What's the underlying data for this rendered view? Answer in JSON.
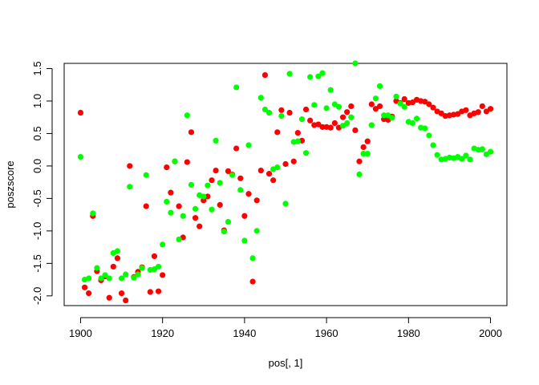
{
  "chart_data": {
    "type": "scatter",
    "xlabel": "pos[, 1]",
    "ylabel": "poszscore",
    "xlim": [
      1896,
      2004
    ],
    "ylim": [
      -2.15,
      1.58
    ],
    "x_ticks": [
      1900,
      1920,
      1940,
      1960,
      1980,
      2000
    ],
    "y_ticks": [
      -2.0,
      -1.5,
      -1.0,
      -0.5,
      0.0,
      0.5,
      1.0,
      1.5
    ],
    "x_tick_labels": [
      "1900",
      "1920",
      "1940",
      "1960",
      "1980",
      "2000"
    ],
    "y_tick_labels": [
      "-2.0",
      "-1.5",
      "-1.0",
      "-0.5",
      "0.0",
      "0.5",
      "1.0",
      "1.5"
    ],
    "grid": false,
    "legend": "none",
    "series": [
      {
        "color": "#ff0000",
        "x": [
          1900,
          1901,
          1902,
          1903,
          1904,
          1905,
          1906,
          1907,
          1908,
          1909,
          1910,
          1911,
          1912,
          1913,
          1914,
          1915,
          1916,
          1917,
          1918,
          1919,
          1920,
          1921,
          1922,
          1923,
          1924,
          1925,
          1926,
          1927,
          1928,
          1929,
          1930,
          1931,
          1932,
          1933,
          1934,
          1935,
          1936,
          1937,
          1938,
          1939,
          1940,
          1941,
          1942,
          1943,
          1944,
          1945,
          1946,
          1947,
          1948,
          1949,
          1950,
          1951,
          1952,
          1953,
          1954,
          1955,
          1956,
          1957,
          1958,
          1959,
          1960,
          1961,
          1962,
          1963,
          1964,
          1965,
          1966,
          1967,
          1968,
          1969,
          1970,
          1971,
          1972,
          1973,
          1974,
          1975,
          1976,
          1977,
          1978,
          1979,
          1980,
          1981,
          1982,
          1983,
          1984,
          1985,
          1986,
          1987,
          1988,
          1989,
          1990,
          1991,
          1992,
          1993,
          1994,
          1995,
          1996,
          1997,
          1998,
          1999,
          2000
        ],
        "y": [
          0.82,
          -1.87,
          -1.96,
          -0.77,
          -1.62,
          -1.76,
          -1.7,
          -2.03,
          -1.55,
          -1.42,
          -1.96,
          -2.07,
          0.0,
          -1.71,
          -1.63,
          -1.56,
          -0.62,
          -1.94,
          -1.39,
          -1.93,
          -1.68,
          -0.02,
          -0.41,
          0.07,
          -0.62,
          -1.1,
          0.06,
          0.52,
          -0.8,
          -0.93,
          -0.53,
          -0.47,
          -0.22,
          -0.07,
          -0.6,
          -0.99,
          -0.08,
          -0.13,
          0.27,
          -0.19,
          -0.77,
          -0.43,
          -1.78,
          -0.53,
          -0.07,
          1.4,
          -0.12,
          -0.22,
          0.52,
          0.86,
          0.03,
          0.82,
          0.07,
          0.51,
          0.39,
          0.87,
          0.7,
          0.63,
          0.64,
          0.6,
          0.6,
          0.59,
          0.66,
          0.59,
          0.75,
          0.83,
          0.92,
          0.55,
          0.07,
          0.29,
          0.38,
          0.95,
          0.88,
          0.92,
          0.72,
          0.71,
          0.76,
          1.0,
          0.97,
          1.03,
          0.97,
          0.98,
          1.02,
          1.0,
          0.99,
          0.95,
          0.9,
          0.84,
          0.81,
          0.77,
          0.78,
          0.79,
          0.8,
          0.84,
          0.86,
          0.78,
          0.81,
          0.83,
          0.92,
          0.84,
          0.88
        ]
      },
      {
        "color": "#00ff00",
        "x": [
          1900,
          1901,
          1902,
          1903,
          1904,
          1905,
          1906,
          1907,
          1908,
          1909,
          1910,
          1911,
          1912,
          1913,
          1914,
          1915,
          1916,
          1917,
          1918,
          1919,
          1920,
          1921,
          1922,
          1923,
          1924,
          1925,
          1926,
          1927,
          1928,
          1929,
          1930,
          1931,
          1932,
          1933,
          1934,
          1935,
          1936,
          1937,
          1938,
          1939,
          1940,
          1941,
          1942,
          1943,
          1944,
          1945,
          1946,
          1947,
          1948,
          1949,
          1950,
          1951,
          1952,
          1953,
          1954,
          1955,
          1956,
          1957,
          1958,
          1959,
          1960,
          1961,
          1962,
          1963,
          1964,
          1965,
          1966,
          1967,
          1968,
          1969,
          1970,
          1971,
          1972,
          1973,
          1974,
          1975,
          1976,
          1977,
          1978,
          1979,
          1980,
          1981,
          1982,
          1983,
          1984,
          1985,
          1986,
          1987,
          1988,
          1989,
          1990,
          1991,
          1992,
          1993,
          1994,
          1995,
          1996,
          1997,
          1998,
          1999,
          2000
        ],
        "y": [
          0.14,
          -1.75,
          -1.73,
          -0.73,
          -1.57,
          -1.73,
          -1.68,
          -1.73,
          -1.34,
          -1.31,
          -1.73,
          -1.67,
          -0.32,
          -1.72,
          -1.67,
          -1.57,
          -0.14,
          -1.6,
          -1.59,
          -1.55,
          -1.21,
          -0.55,
          -0.72,
          0.07,
          -1.13,
          -0.77,
          0.78,
          -0.29,
          -0.66,
          -0.45,
          -0.47,
          -0.3,
          -0.67,
          0.39,
          -0.26,
          -1.01,
          -0.86,
          -0.14,
          1.21,
          -0.37,
          -1.15,
          0.32,
          -1.42,
          -1.0,
          1.05,
          0.87,
          0.82,
          -0.05,
          -0.02,
          0.77,
          -0.58,
          1.42,
          0.37,
          0.38,
          0.72,
          0.2,
          1.37,
          0.94,
          1.38,
          1.43,
          0.89,
          1.17,
          0.95,
          0.91,
          0.62,
          0.66,
          0.75,
          1.58,
          -0.13,
          0.19,
          0.19,
          0.63,
          1.04,
          1.23,
          0.78,
          0.78,
          0.74,
          1.07,
          0.96,
          0.91,
          0.68,
          0.66,
          0.73,
          0.59,
          0.58,
          0.47,
          0.32,
          0.17,
          0.1,
          0.11,
          0.13,
          0.12,
          0.14,
          0.11,
          0.16,
          0.1,
          0.27,
          0.25,
          0.26,
          0.18,
          0.22
        ]
      }
    ]
  }
}
